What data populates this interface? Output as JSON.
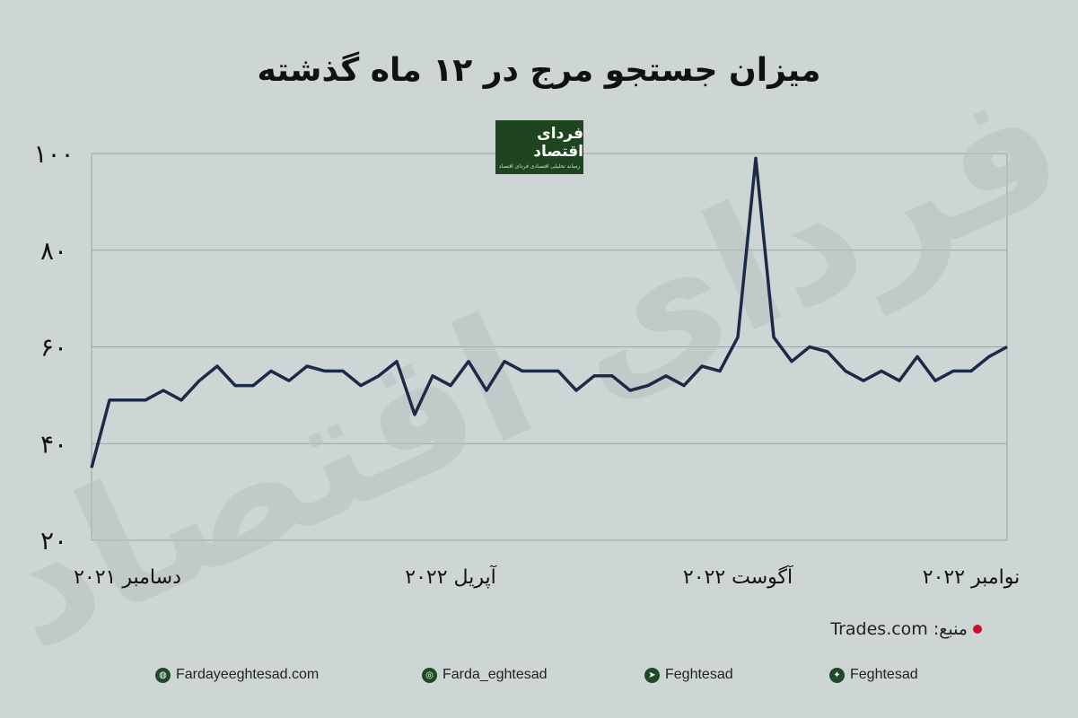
{
  "header": {
    "title": "میزان جستجو مرج در ۱۲ ماه گذشته"
  },
  "logo": {
    "name": "فردای اقتصاد",
    "tagline": "رسانه تحلیلی اقتصادی فردای اقتصاد"
  },
  "watermark": "فردای اقتصاد",
  "source": {
    "label": "منبع:",
    "value": "Trades.com"
  },
  "footer": {
    "website": "Fardayeeghtesad.com",
    "instagram": "Farda_eghtesad",
    "telegram": "Feghtesad",
    "twitter": "Feghtesad"
  },
  "colors": {
    "line": "#1c2a47",
    "background": "#cdd6d5",
    "logo_bg": "#1e4420",
    "dot": "#c8102e"
  },
  "icons": [
    "globe-icon",
    "instagram-icon",
    "telegram-icon",
    "twitter-icon"
  ],
  "chart_data": {
    "type": "line",
    "title": "میزان جستجو مرج در ۱۲ ماه گذشته",
    "ylim": [
      20,
      100
    ],
    "yticks": [
      20,
      40,
      60,
      80,
      100
    ],
    "ytick_labels": [
      "۲۰",
      "۴۰",
      "۶۰",
      "۸۰",
      "۱۰۰"
    ],
    "grid": true,
    "xtick_labels": [
      {
        "label": "دسامبر ۲۰۲۱",
        "index": 2
      },
      {
        "label": "آپریل ۲۰۲۲",
        "index": 20
      },
      {
        "label": "آگوست ۲۰۲۲",
        "index": 36
      },
      {
        "label": "نوامبر ۲۰۲۲",
        "index": 49
      }
    ],
    "values": [
      35,
      49,
      49,
      49,
      51,
      49,
      53,
      56,
      52,
      52,
      55,
      53,
      56,
      55,
      55,
      52,
      54,
      57,
      46,
      54,
      52,
      57,
      51,
      57,
      55,
      55,
      55,
      51,
      54,
      54,
      51,
      52,
      54,
      52,
      56,
      55,
      62,
      99,
      62,
      57,
      60,
      59,
      55,
      53,
      55,
      53,
      58,
      53,
      55,
      55,
      58,
      60
    ]
  }
}
